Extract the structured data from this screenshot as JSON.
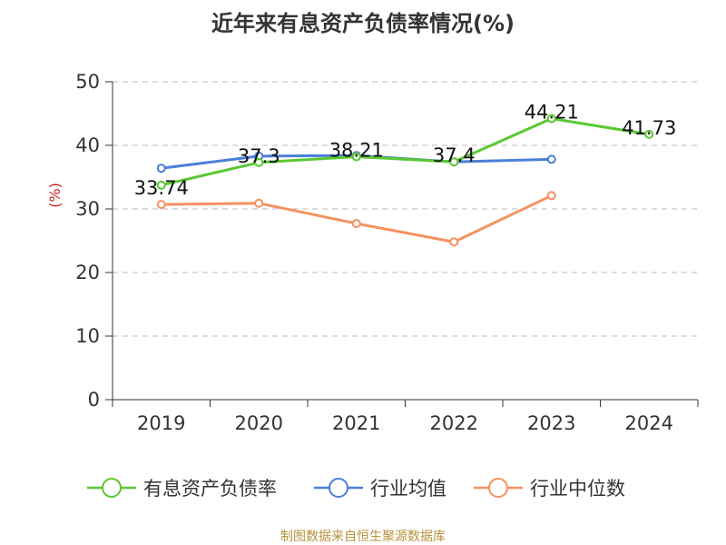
{
  "title": "近年来有息资产负债率情况(%)",
  "source": "制图数据来自恒生聚源数据库",
  "chart_data": {
    "type": "line",
    "title": "近年来有息资产负债率情况(%)",
    "ylabel": "(%)",
    "ylim": [
      0,
      50
    ],
    "yticks": [
      0,
      10,
      20,
      30,
      40,
      50
    ],
    "grid": true,
    "legend_position": "bottom",
    "categories": [
      "2019",
      "2020",
      "2021",
      "2022",
      "2023",
      "2024"
    ],
    "series": [
      {
        "name": "有息资产负债率",
        "color": "#5ac832",
        "values": [
          33.74,
          37.3,
          38.21,
          37.4,
          44.21,
          41.73
        ],
        "labels": [
          "33.74",
          "37.3",
          "38.21",
          "37.4",
          "44.21",
          "41.73"
        ]
      },
      {
        "name": "行业均值",
        "color": "#4a7fd8",
        "values": [
          36.4,
          38.3,
          38.4,
          37.4,
          37.8,
          null
        ]
      },
      {
        "name": "行业中位数",
        "color": "#f59160",
        "values": [
          30.7,
          30.9,
          27.7,
          24.8,
          32.1,
          null
        ]
      }
    ]
  }
}
